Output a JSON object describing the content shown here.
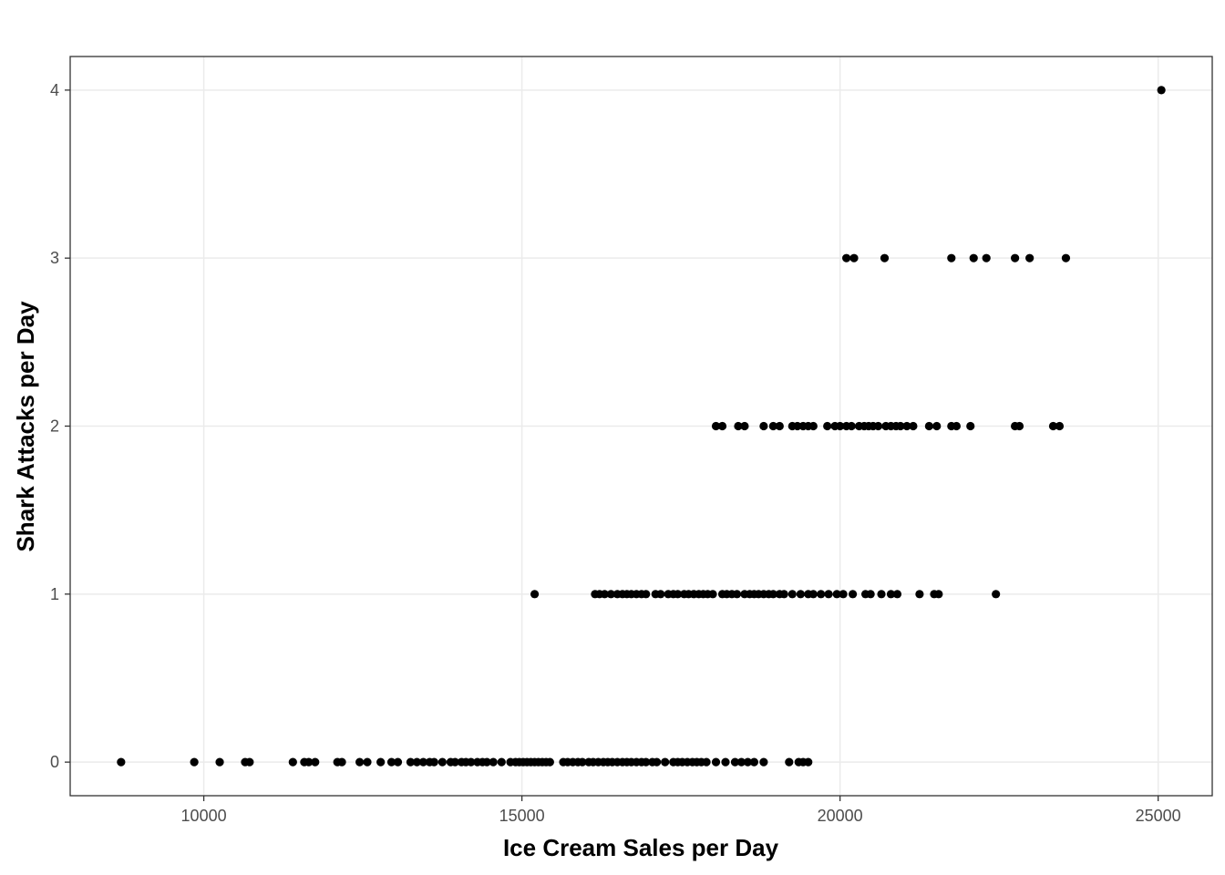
{
  "chart_data": {
    "type": "scatter",
    "title": "",
    "xlabel": "Ice Cream Sales per Day",
    "ylabel": "Shark Attacks per Day",
    "xlim": [
      7900,
      25850
    ],
    "ylim": [
      -0.2,
      4.2
    ],
    "x_ticks": [
      10000,
      15000,
      20000,
      25000
    ],
    "y_ticks": [
      0,
      1,
      2,
      3,
      4
    ],
    "x_tick_labels": [
      "10000",
      "15000",
      "20000",
      "25000"
    ],
    "y_tick_labels": [
      "0",
      "1",
      "2",
      "3",
      "4"
    ],
    "grid": true,
    "point_color": "#000000",
    "points": [
      {
        "x": 8700,
        "y": 0
      },
      {
        "x": 9850,
        "y": 0
      },
      {
        "x": 10250,
        "y": 0
      },
      {
        "x": 10650,
        "y": 0
      },
      {
        "x": 10720,
        "y": 0
      },
      {
        "x": 11400,
        "y": 0
      },
      {
        "x": 11580,
        "y": 0
      },
      {
        "x": 11650,
        "y": 0
      },
      {
        "x": 11750,
        "y": 0
      },
      {
        "x": 12100,
        "y": 0
      },
      {
        "x": 12170,
        "y": 0
      },
      {
        "x": 12450,
        "y": 0
      },
      {
        "x": 12570,
        "y": 0
      },
      {
        "x": 12780,
        "y": 0
      },
      {
        "x": 12950,
        "y": 0
      },
      {
        "x": 13050,
        "y": 0
      },
      {
        "x": 13250,
        "y": 0
      },
      {
        "x": 13350,
        "y": 0
      },
      {
        "x": 13450,
        "y": 0
      },
      {
        "x": 13550,
        "y": 0
      },
      {
        "x": 13620,
        "y": 0
      },
      {
        "x": 13750,
        "y": 0
      },
      {
        "x": 13880,
        "y": 0
      },
      {
        "x": 13950,
        "y": 0
      },
      {
        "x": 14050,
        "y": 0
      },
      {
        "x": 14120,
        "y": 0
      },
      {
        "x": 14200,
        "y": 0
      },
      {
        "x": 14300,
        "y": 0
      },
      {
        "x": 14380,
        "y": 0
      },
      {
        "x": 14450,
        "y": 0
      },
      {
        "x": 14550,
        "y": 0
      },
      {
        "x": 14680,
        "y": 0
      },
      {
        "x": 14820,
        "y": 0
      },
      {
        "x": 14900,
        "y": 0
      },
      {
        "x": 14960,
        "y": 0
      },
      {
        "x": 15020,
        "y": 0
      },
      {
        "x": 15080,
        "y": 0
      },
      {
        "x": 15140,
        "y": 0
      },
      {
        "x": 15200,
        "y": 0
      },
      {
        "x": 15260,
        "y": 0
      },
      {
        "x": 15320,
        "y": 0
      },
      {
        "x": 15380,
        "y": 0
      },
      {
        "x": 15440,
        "y": 0
      },
      {
        "x": 15650,
        "y": 0
      },
      {
        "x": 15720,
        "y": 0
      },
      {
        "x": 15800,
        "y": 0
      },
      {
        "x": 15880,
        "y": 0
      },
      {
        "x": 15950,
        "y": 0
      },
      {
        "x": 16050,
        "y": 0
      },
      {
        "x": 16120,
        "y": 0
      },
      {
        "x": 16200,
        "y": 0
      },
      {
        "x": 16280,
        "y": 0
      },
      {
        "x": 16350,
        "y": 0
      },
      {
        "x": 16420,
        "y": 0
      },
      {
        "x": 16500,
        "y": 0
      },
      {
        "x": 16580,
        "y": 0
      },
      {
        "x": 16650,
        "y": 0
      },
      {
        "x": 16720,
        "y": 0
      },
      {
        "x": 16800,
        "y": 0
      },
      {
        "x": 16880,
        "y": 0
      },
      {
        "x": 16950,
        "y": 0
      },
      {
        "x": 17050,
        "y": 0
      },
      {
        "x": 17120,
        "y": 0
      },
      {
        "x": 17250,
        "y": 0
      },
      {
        "x": 17380,
        "y": 0
      },
      {
        "x": 17450,
        "y": 0
      },
      {
        "x": 17520,
        "y": 0
      },
      {
        "x": 17600,
        "y": 0
      },
      {
        "x": 17680,
        "y": 0
      },
      {
        "x": 17750,
        "y": 0
      },
      {
        "x": 17820,
        "y": 0
      },
      {
        "x": 17900,
        "y": 0
      },
      {
        "x": 18050,
        "y": 0
      },
      {
        "x": 18200,
        "y": 0
      },
      {
        "x": 18350,
        "y": 0
      },
      {
        "x": 18450,
        "y": 0
      },
      {
        "x": 18550,
        "y": 0
      },
      {
        "x": 18650,
        "y": 0
      },
      {
        "x": 18800,
        "y": 0
      },
      {
        "x": 19200,
        "y": 0
      },
      {
        "x": 19350,
        "y": 0
      },
      {
        "x": 19420,
        "y": 0
      },
      {
        "x": 19500,
        "y": 0
      },
      {
        "x": 15200,
        "y": 1
      },
      {
        "x": 16150,
        "y": 1
      },
      {
        "x": 16220,
        "y": 1
      },
      {
        "x": 16300,
        "y": 1
      },
      {
        "x": 16400,
        "y": 1
      },
      {
        "x": 16500,
        "y": 1
      },
      {
        "x": 16580,
        "y": 1
      },
      {
        "x": 16650,
        "y": 1
      },
      {
        "x": 16720,
        "y": 1
      },
      {
        "x": 16800,
        "y": 1
      },
      {
        "x": 16880,
        "y": 1
      },
      {
        "x": 16950,
        "y": 1
      },
      {
        "x": 17100,
        "y": 1
      },
      {
        "x": 17180,
        "y": 1
      },
      {
        "x": 17300,
        "y": 1
      },
      {
        "x": 17380,
        "y": 1
      },
      {
        "x": 17450,
        "y": 1
      },
      {
        "x": 17550,
        "y": 1
      },
      {
        "x": 17620,
        "y": 1
      },
      {
        "x": 17700,
        "y": 1
      },
      {
        "x": 17780,
        "y": 1
      },
      {
        "x": 17850,
        "y": 1
      },
      {
        "x": 17920,
        "y": 1
      },
      {
        "x": 18000,
        "y": 1
      },
      {
        "x": 18150,
        "y": 1
      },
      {
        "x": 18220,
        "y": 1
      },
      {
        "x": 18300,
        "y": 1
      },
      {
        "x": 18380,
        "y": 1
      },
      {
        "x": 18500,
        "y": 1
      },
      {
        "x": 18580,
        "y": 1
      },
      {
        "x": 18650,
        "y": 1
      },
      {
        "x": 18720,
        "y": 1
      },
      {
        "x": 18800,
        "y": 1
      },
      {
        "x": 18880,
        "y": 1
      },
      {
        "x": 18950,
        "y": 1
      },
      {
        "x": 19050,
        "y": 1
      },
      {
        "x": 19120,
        "y": 1
      },
      {
        "x": 19250,
        "y": 1
      },
      {
        "x": 19380,
        "y": 1
      },
      {
        "x": 19500,
        "y": 1
      },
      {
        "x": 19580,
        "y": 1
      },
      {
        "x": 19700,
        "y": 1
      },
      {
        "x": 19820,
        "y": 1
      },
      {
        "x": 19950,
        "y": 1
      },
      {
        "x": 20050,
        "y": 1
      },
      {
        "x": 20200,
        "y": 1
      },
      {
        "x": 20400,
        "y": 1
      },
      {
        "x": 20480,
        "y": 1
      },
      {
        "x": 20650,
        "y": 1
      },
      {
        "x": 20800,
        "y": 1
      },
      {
        "x": 20900,
        "y": 1
      },
      {
        "x": 21250,
        "y": 1
      },
      {
        "x": 21480,
        "y": 1
      },
      {
        "x": 21550,
        "y": 1
      },
      {
        "x": 22450,
        "y": 1
      },
      {
        "x": 18050,
        "y": 2
      },
      {
        "x": 18150,
        "y": 2
      },
      {
        "x": 18400,
        "y": 2
      },
      {
        "x": 18500,
        "y": 2
      },
      {
        "x": 18800,
        "y": 2
      },
      {
        "x": 18950,
        "y": 2
      },
      {
        "x": 19050,
        "y": 2
      },
      {
        "x": 19250,
        "y": 2
      },
      {
        "x": 19330,
        "y": 2
      },
      {
        "x": 19420,
        "y": 2
      },
      {
        "x": 19500,
        "y": 2
      },
      {
        "x": 19580,
        "y": 2
      },
      {
        "x": 19800,
        "y": 2
      },
      {
        "x": 19920,
        "y": 2
      },
      {
        "x": 20000,
        "y": 2
      },
      {
        "x": 20100,
        "y": 2
      },
      {
        "x": 20180,
        "y": 2
      },
      {
        "x": 20300,
        "y": 2
      },
      {
        "x": 20380,
        "y": 2
      },
      {
        "x": 20450,
        "y": 2
      },
      {
        "x": 20520,
        "y": 2
      },
      {
        "x": 20600,
        "y": 2
      },
      {
        "x": 20720,
        "y": 2
      },
      {
        "x": 20800,
        "y": 2
      },
      {
        "x": 20880,
        "y": 2
      },
      {
        "x": 20950,
        "y": 2
      },
      {
        "x": 21050,
        "y": 2
      },
      {
        "x": 21150,
        "y": 2
      },
      {
        "x": 21400,
        "y": 2
      },
      {
        "x": 21520,
        "y": 2
      },
      {
        "x": 21750,
        "y": 2
      },
      {
        "x": 21830,
        "y": 2
      },
      {
        "x": 22050,
        "y": 2
      },
      {
        "x": 22750,
        "y": 2
      },
      {
        "x": 22820,
        "y": 2
      },
      {
        "x": 23350,
        "y": 2
      },
      {
        "x": 23450,
        "y": 2
      },
      {
        "x": 20100,
        "y": 3
      },
      {
        "x": 20220,
        "y": 3
      },
      {
        "x": 20700,
        "y": 3
      },
      {
        "x": 21750,
        "y": 3
      },
      {
        "x": 22100,
        "y": 3
      },
      {
        "x": 22300,
        "y": 3
      },
      {
        "x": 22750,
        "y": 3
      },
      {
        "x": 22980,
        "y": 3
      },
      {
        "x": 23550,
        "y": 3
      },
      {
        "x": 25050,
        "y": 4
      }
    ]
  }
}
